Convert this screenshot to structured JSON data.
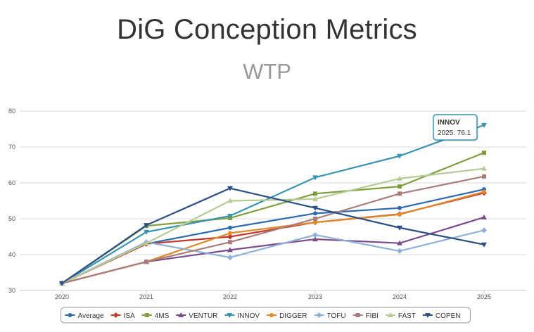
{
  "chart_data": {
    "type": "line",
    "title": "DiG Conception Metrics",
    "subtitle": "WTP",
    "x": [
      "2020",
      "2021",
      "2022",
      "2023",
      "2024",
      "2025"
    ],
    "ylim": [
      30,
      80
    ],
    "yticks": [
      "30",
      "40",
      "50",
      "60",
      "70",
      "80"
    ],
    "grid": true,
    "legend": "bottom",
    "series": [
      {
        "name": "Average",
        "color": "#2e6aad",
        "marker": "circle",
        "values": [
          32,
          43,
          47.5,
          51.5,
          53,
          58.2
        ]
      },
      {
        "name": "ISA",
        "color": "#c0392b",
        "marker": "diamond",
        "values": [
          32,
          43,
          45,
          49,
          51.3,
          57.2
        ]
      },
      {
        "name": "4MS",
        "color": "#7f9f3f",
        "marker": "square",
        "values": [
          32,
          48,
          50.2,
          57,
          59,
          68.4
        ]
      },
      {
        "name": "VENTUR",
        "color": "#7c4c8a",
        "marker": "triangle",
        "values": [
          32,
          38,
          41.3,
          44.3,
          43.2,
          50.4
        ]
      },
      {
        "name": "INNOV",
        "color": "#3a93b0",
        "marker": "triangle-down",
        "values": [
          32,
          46.3,
          50.8,
          61.5,
          67.5,
          76.1
        ]
      },
      {
        "name": "DIGGER",
        "color": "#e08a2c",
        "marker": "circle",
        "values": [
          32,
          38,
          46,
          49,
          51.2,
          57.5
        ]
      },
      {
        "name": "TOFU",
        "color": "#8fb0d6",
        "marker": "diamond",
        "values": [
          32,
          43.5,
          39.2,
          45.5,
          41,
          46.8
        ]
      },
      {
        "name": "FIBI",
        "color": "#a97c7a",
        "marker": "square",
        "values": [
          32,
          38,
          43.5,
          50,
          57,
          61.8
        ]
      },
      {
        "name": "FAST",
        "color": "#b5cc95",
        "marker": "triangle",
        "values": [
          32,
          43.2,
          55,
          55.5,
          61.2,
          64
        ]
      },
      {
        "name": "COPEN",
        "color": "#2c4f86",
        "marker": "triangle-down",
        "values": [
          32,
          48.2,
          58.5,
          53,
          47.5,
          42.8
        ]
      }
    ],
    "tooltip": {
      "series": "INNOV",
      "label": "INNOV",
      "text": "2025: 76.1"
    }
  }
}
